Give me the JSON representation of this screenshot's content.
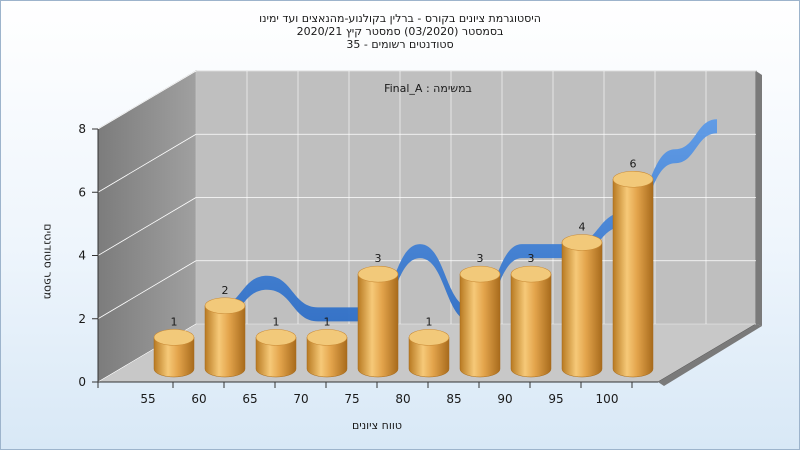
{
  "window": {
    "title_lines": [
      "היסטוגרמת ציונים בקורס - ברלין בקולנוע-מהנאצים ועד ימינו",
      "בסמסטר  (03/2020)  סמסטר קיץ  2020/21",
      "סטודנטים רשומים - 35"
    ]
  },
  "chart_data": {
    "type": "bar",
    "title": "היסטוגרמת ציונים בקורס - ברלין בקולנוע-מהנאצים ועד ימינו",
    "subtitle_lines": [
      "בסמסטר  (03/2020)  סמסטר קיץ  2020/21",
      "סטודנטים רשומים - 35"
    ],
    "panel_label": "Final_A : במשימה",
    "xlabel": "טווח ציונים",
    "ylabel": "מספר סטודנטים",
    "categories": [
      "55",
      "60",
      "65",
      "70",
      "75",
      "80",
      "85",
      "90",
      "95",
      "100"
    ],
    "values": [
      1,
      2,
      1,
      1,
      3,
      1,
      3,
      3,
      4,
      6
    ],
    "y_ticks": [
      0,
      2,
      4,
      6,
      8
    ],
    "ylim": [
      0,
      8
    ],
    "grid": true,
    "bar_style": "3d-cylinder",
    "trend_ribbon": true,
    "colors": {
      "bar": "#e0a84e",
      "bar_top": "#f2c97a",
      "ribbon": "#3d7fd6",
      "back_wall": "#bfbfbf",
      "side_wall": "#8c8c8c",
      "floor": "#c8c8c8"
    }
  }
}
